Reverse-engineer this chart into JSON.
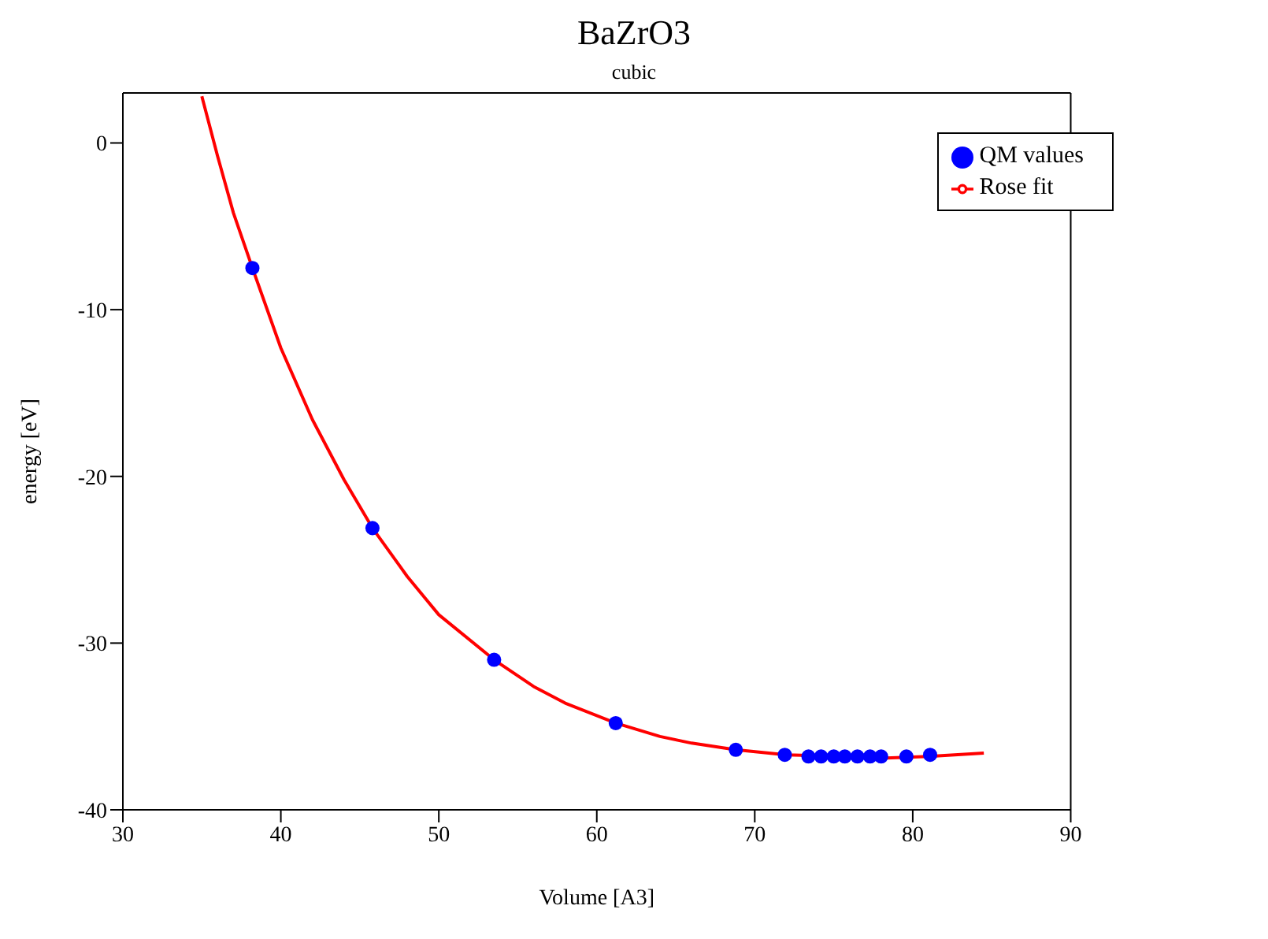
{
  "chart_data": {
    "type": "scatter",
    "title": "BaZrO3",
    "subtitle": "cubic",
    "xlabel": "Volume [A3]",
    "ylabel": "energy [eV]",
    "xlim": [
      30,
      90
    ],
    "xticks": [
      30,
      40,
      50,
      60,
      70,
      80,
      90
    ],
    "ylim": [
      -40,
      3
    ],
    "yticks": [
      -40,
      -30,
      -20,
      -10,
      0
    ],
    "grid": false,
    "legend": "top right",
    "series": [
      {
        "name": "QM values",
        "marker": "circle",
        "color": "#0000ff",
        "x": [
          38.2,
          45.8,
          53.5,
          61.2,
          68.8,
          71.9,
          73.4,
          74.2,
          75.0,
          75.7,
          76.5,
          77.3,
          78.0,
          79.6,
          81.1
        ],
        "values": [
          -7.5,
          -23.1,
          -31.0,
          -34.8,
          -36.4,
          -36.7,
          -36.8,
          -36.8,
          -36.8,
          -36.8,
          -36.8,
          -36.8,
          -36.8,
          -36.8,
          -36.7
        ]
      },
      {
        "name": "Rose fit",
        "type": "line",
        "marker": "none",
        "line_style": "solid",
        "color": "#ff0000",
        "x": [
          35,
          36,
          37,
          38.2,
          40,
          42,
          44,
          45.8,
          48,
          50,
          53.5,
          56,
          58,
          61.2,
          64,
          66,
          68.8,
          72,
          75,
          78,
          81,
          84.5
        ],
        "values": [
          2.8,
          -0.8,
          -4.2,
          -7.5,
          -12.3,
          -16.6,
          -20.2,
          -23.1,
          -26.0,
          -28.3,
          -31.0,
          -32.6,
          -33.6,
          -34.8,
          -35.6,
          -36.0,
          -36.4,
          -36.7,
          -36.8,
          -36.9,
          -36.8,
          -36.6
        ]
      }
    ]
  }
}
